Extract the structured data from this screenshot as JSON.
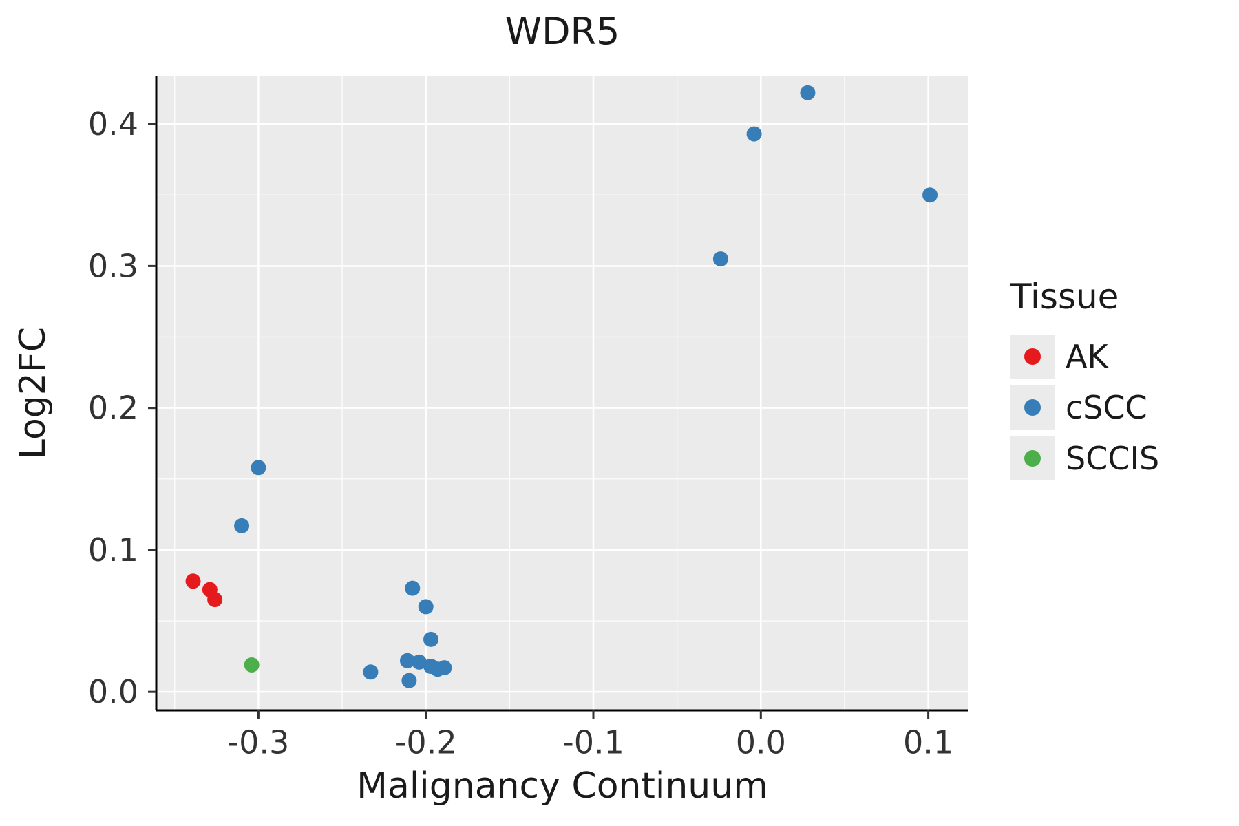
{
  "chart_data": {
    "type": "scatter",
    "title": "WDR5",
    "xlabel": "Malignancy Continuum",
    "ylabel": "Log2FC",
    "xlim": [
      -0.361,
      0.124
    ],
    "ylim": [
      -0.013,
      0.434
    ],
    "x_ticks": [
      -0.3,
      -0.2,
      -0.1,
      0.0,
      0.1
    ],
    "x_tick_labels": [
      "-0.3",
      "-0.2",
      "-0.1",
      "0.0",
      "0.1"
    ],
    "y_ticks": [
      0.0,
      0.1,
      0.2,
      0.3,
      0.4
    ],
    "y_tick_labels": [
      "0.0",
      "0.1",
      "0.2",
      "0.3",
      "0.4"
    ],
    "grid": "major+minor",
    "panel_bg": "#EBEBEB",
    "grid_color": "#FFFFFF",
    "axis_line_color": "#000000",
    "point_radius": 11,
    "legend": {
      "title": "Tissue",
      "position": "right",
      "items": [
        {
          "label": "AK",
          "color": "#E41A1C"
        },
        {
          "label": "cSCC",
          "color": "#377EB8"
        },
        {
          "label": "SCCIS",
          "color": "#4DAF4A"
        }
      ]
    },
    "series": [
      {
        "name": "AK",
        "color": "#E41A1C",
        "points": [
          [
            -0.339,
            0.078
          ],
          [
            -0.329,
            0.072
          ],
          [
            -0.326,
            0.065
          ]
        ]
      },
      {
        "name": "cSCC",
        "color": "#377EB8",
        "points": [
          [
            -0.31,
            0.117
          ],
          [
            -0.3,
            0.158
          ],
          [
            -0.233,
            0.014
          ],
          [
            -0.208,
            0.073
          ],
          [
            -0.2,
            0.06
          ],
          [
            -0.197,
            0.037
          ],
          [
            -0.211,
            0.022
          ],
          [
            -0.204,
            0.021
          ],
          [
            -0.197,
            0.018
          ],
          [
            -0.193,
            0.016
          ],
          [
            -0.189,
            0.017
          ],
          [
            -0.21,
            0.008
          ],
          [
            -0.024,
            0.305
          ],
          [
            -0.004,
            0.393
          ],
          [
            0.028,
            0.422
          ],
          [
            0.101,
            0.35
          ]
        ]
      },
      {
        "name": "SCCIS",
        "color": "#4DAF4A",
        "points": [
          [
            -0.304,
            0.019
          ]
        ]
      }
    ]
  }
}
